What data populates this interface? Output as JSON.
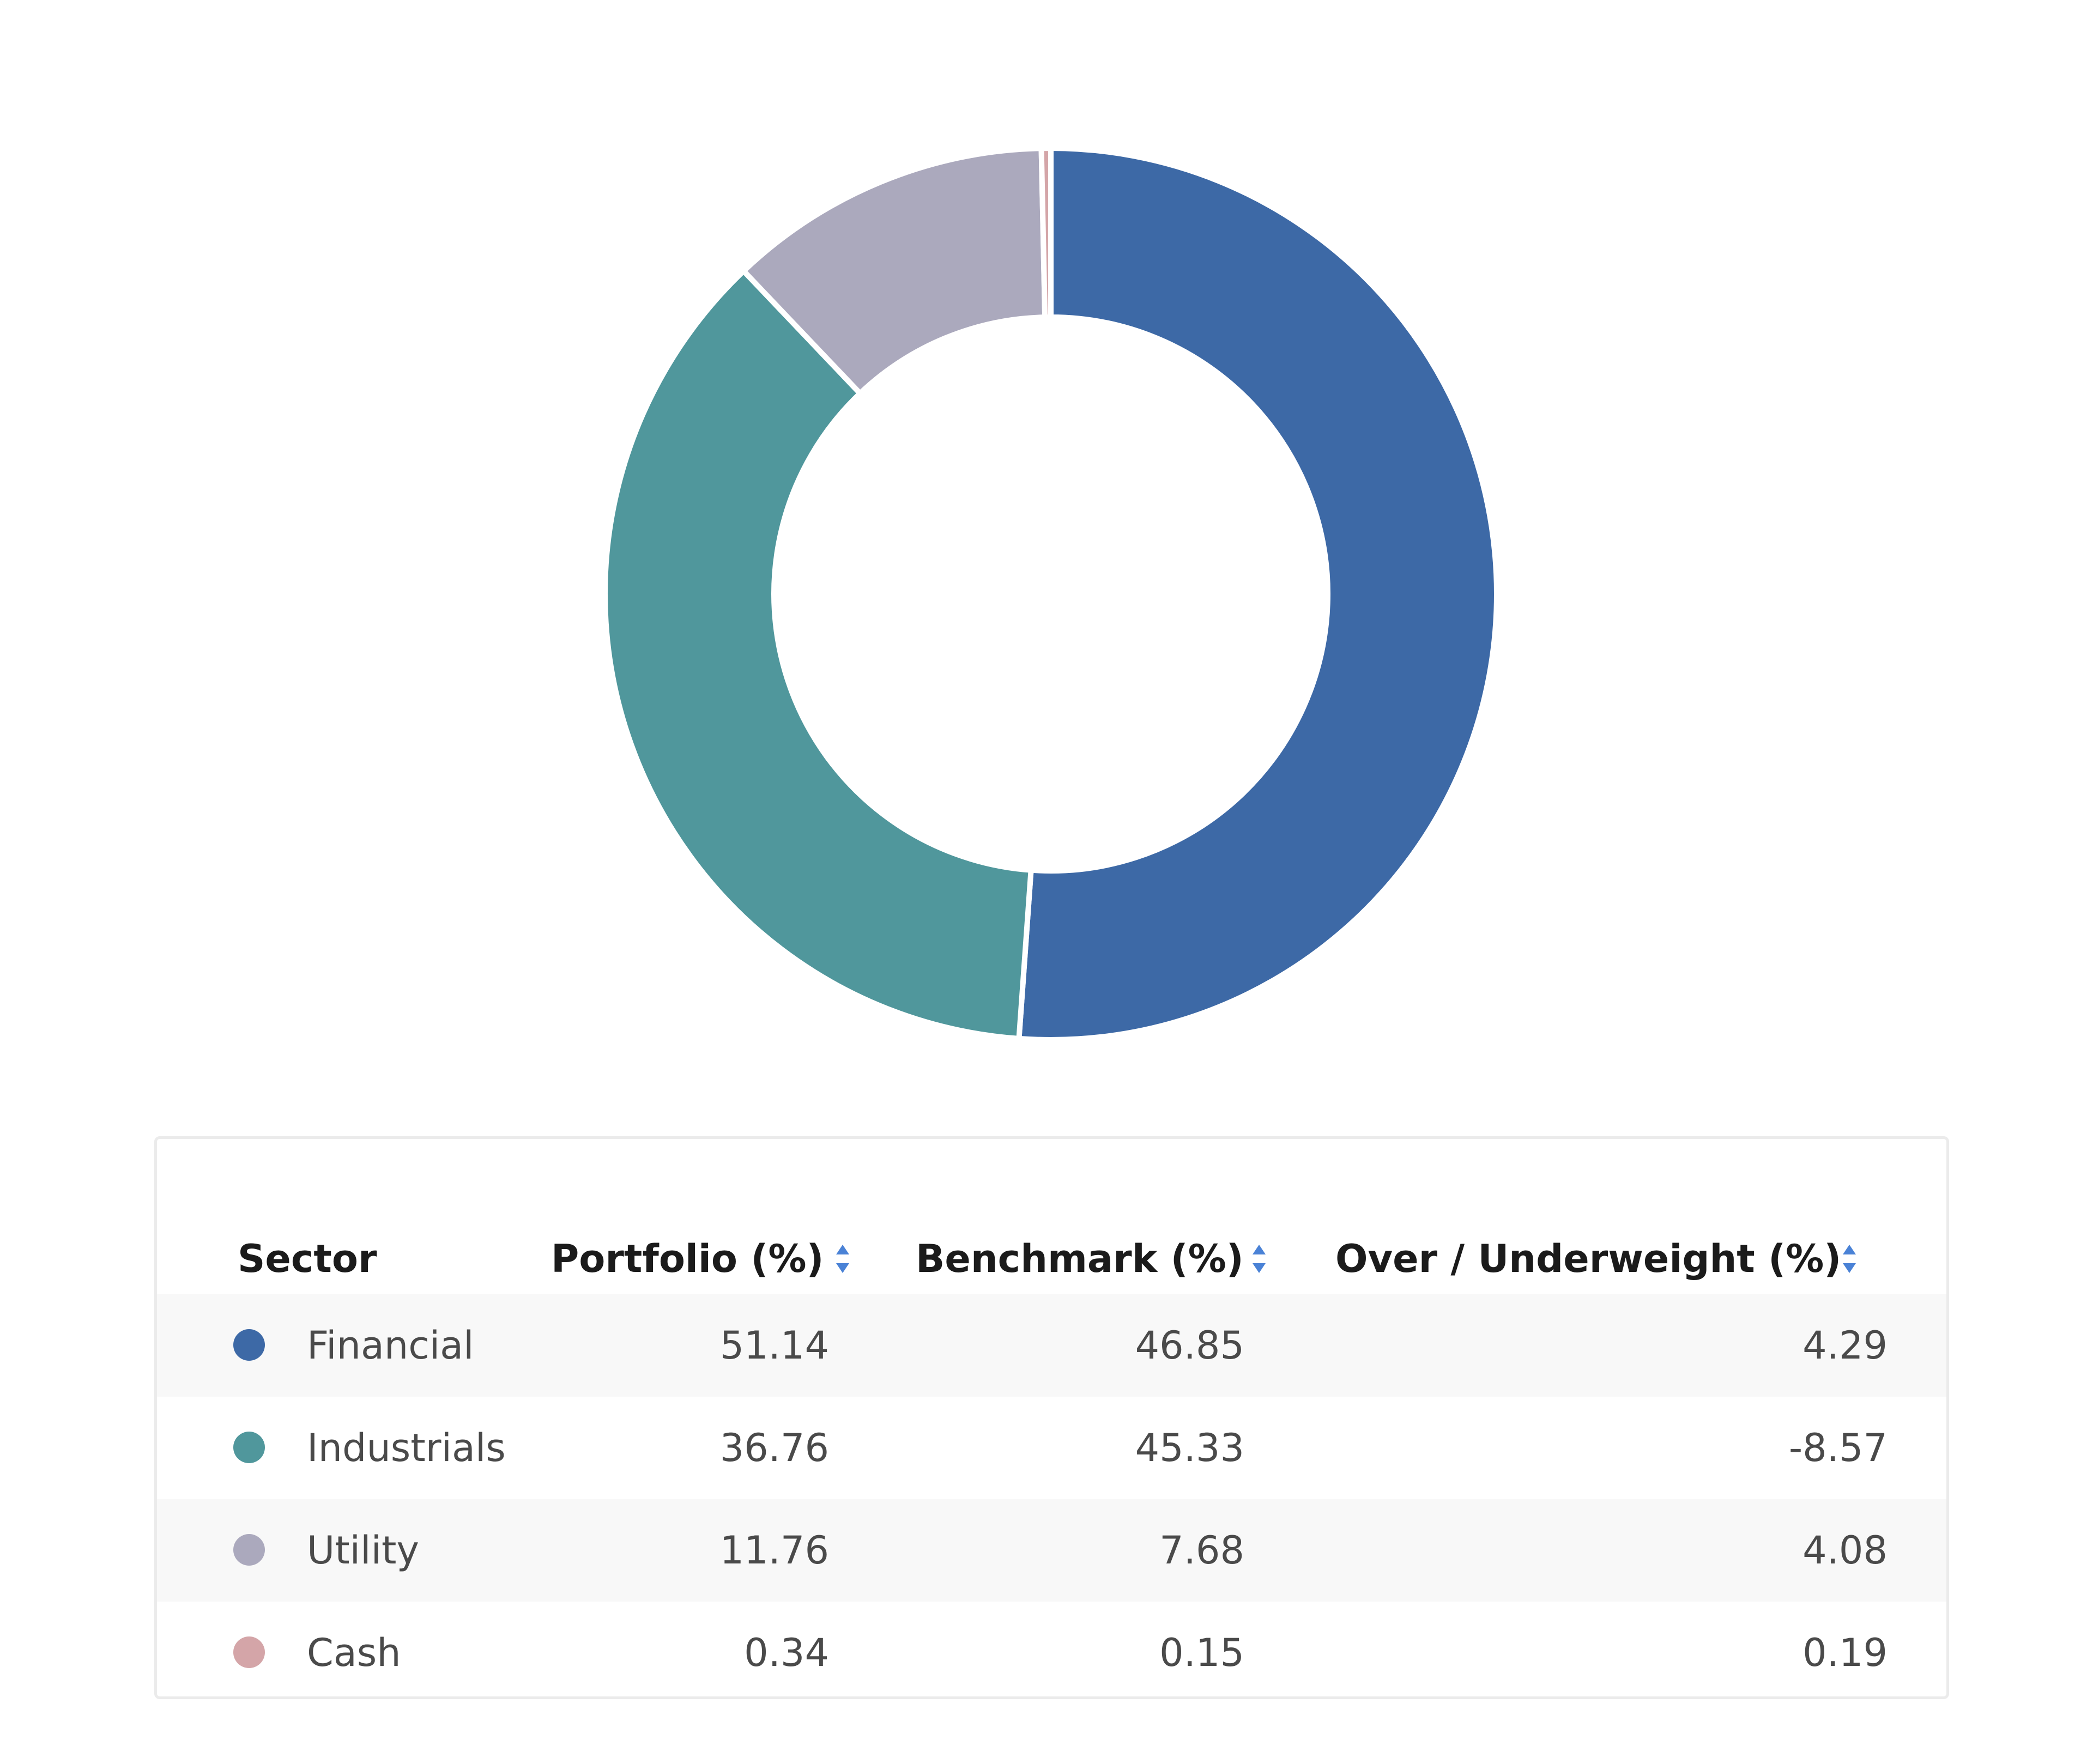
{
  "chart_data": {
    "type": "pie",
    "style": "donut",
    "categories": [
      "Financial",
      "Industrials",
      "Utility",
      "Cash"
    ],
    "values": [
      51.14,
      36.76,
      11.76,
      0.34
    ],
    "colors": [
      "#3d69a6",
      "#50979c",
      "#aba9bd",
      "#d4a5a8"
    ]
  },
  "table": {
    "headers": {
      "sector": "Sector",
      "portfolio": "Portfolio (%)",
      "benchmark": "Benchmark (%)",
      "overweight": "Over / Underweight (%)"
    },
    "sort_icon": "sort-updown-icon",
    "rows": [
      {
        "sector": "Financial",
        "portfolio": "51.14",
        "benchmark": "46.85",
        "overweight": "4.29",
        "color": "#3d69a6"
      },
      {
        "sector": "Industrials",
        "portfolio": "36.76",
        "benchmark": "45.33",
        "overweight": "-8.57",
        "color": "#50979c"
      },
      {
        "sector": "Utility",
        "portfolio": "11.76",
        "benchmark": "7.68",
        "overweight": "4.08",
        "color": "#aba9bd"
      },
      {
        "sector": "Cash",
        "portfolio": "0.34",
        "benchmark": "0.15",
        "overweight": "0.19",
        "color": "#d4a5a8"
      }
    ]
  }
}
